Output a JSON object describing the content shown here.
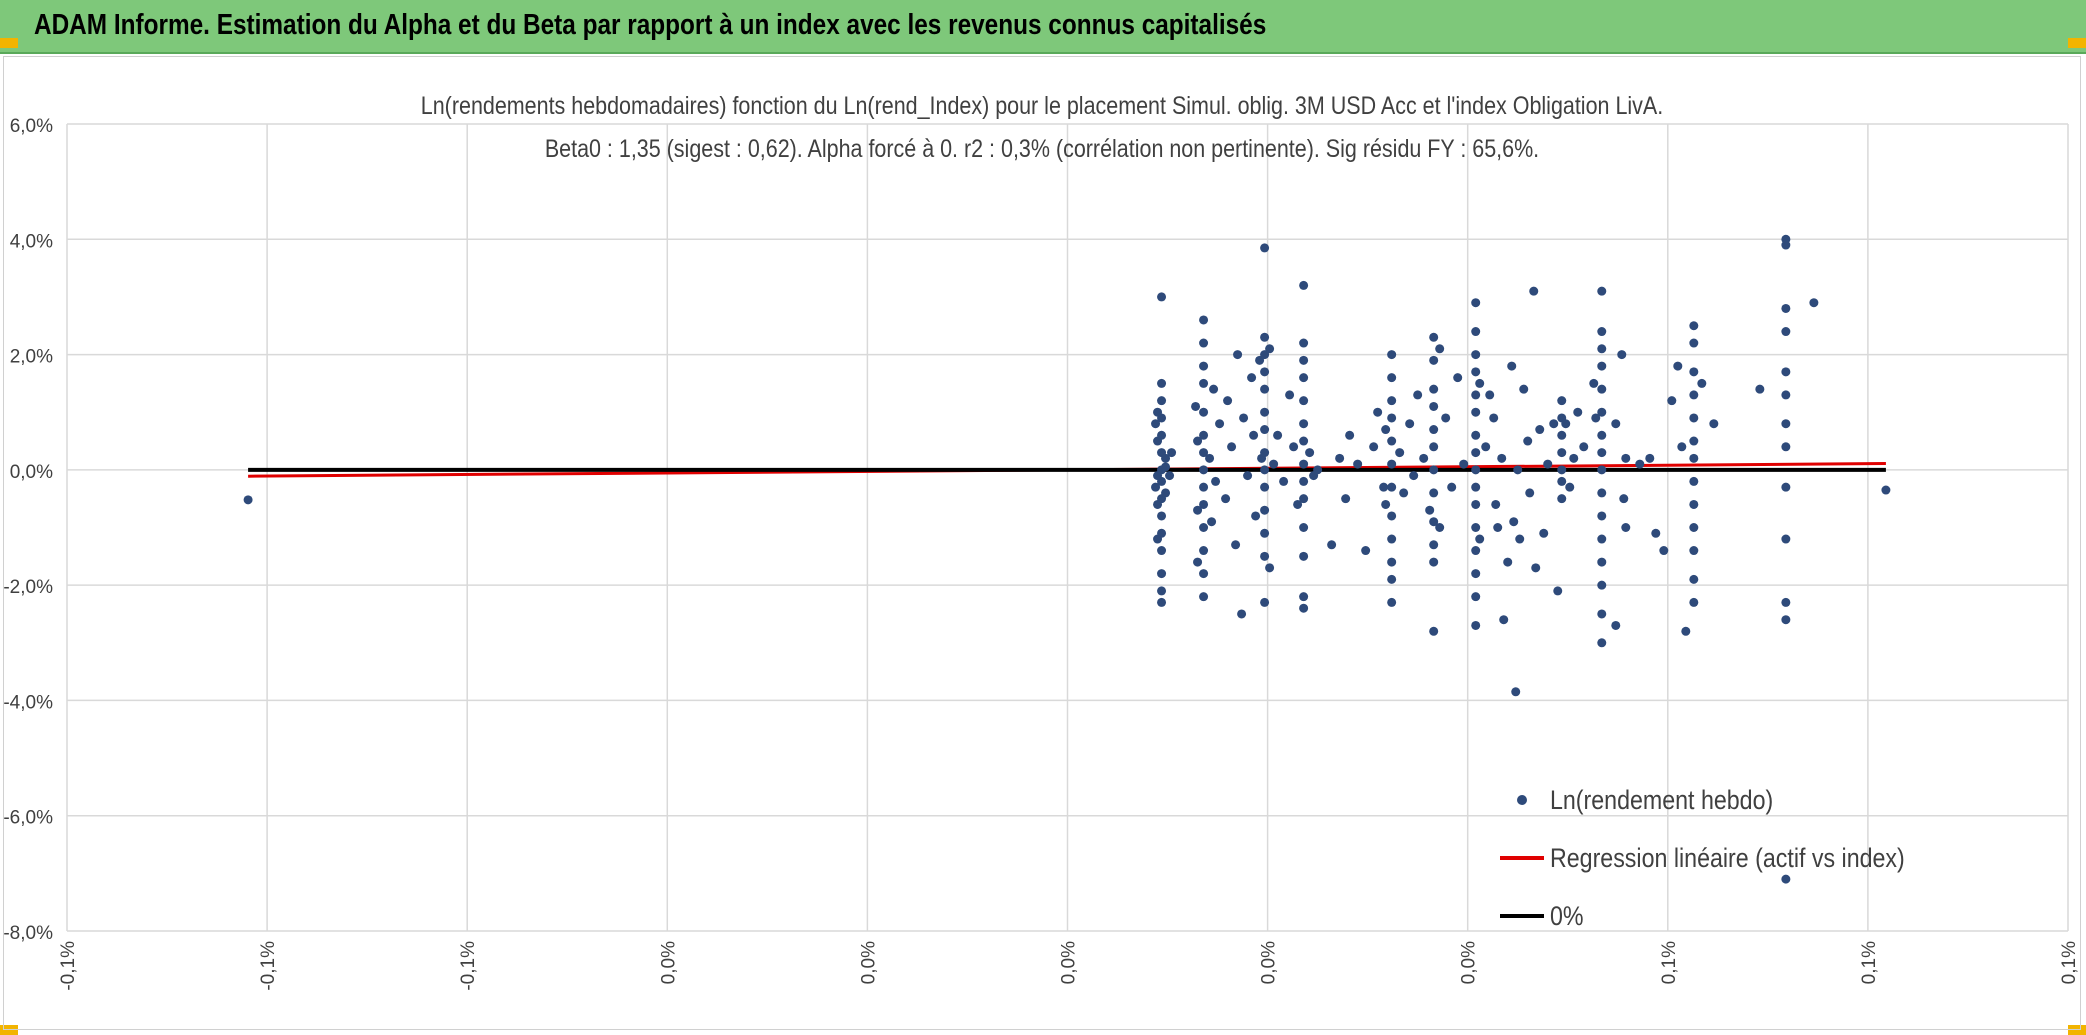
{
  "header": {
    "title": "ADAM Informe. Estimation du Alpha et du Beta par rapport à un index avec les revenus connus capitalisés"
  },
  "colors": {
    "banner": "#7ec87a",
    "points": "#2e4a7a",
    "regression": "#e00000",
    "zero_line": "#000000",
    "grid": "#d9d9d9"
  },
  "chart_data": {
    "type": "scatter",
    "title": "Ln(rendements hebdomadaires) fonction du Ln(rend_Index) pour le placement Simul. oblig. 3M USD Acc et l'index Obligation LivA.",
    "subtitle": "Beta0 : 1,35 (sigest : 0,62). Alpha forcé à 0. r2 : 0,3% (corrélation non pertinente). Sig résidu FY : 65,6%.",
    "xlabel": "",
    "ylabel": "",
    "xlim": [
      -0.1,
      0.1
    ],
    "ylim": [
      -8,
      6
    ],
    "x_ticks": [
      -0.1,
      -0.08,
      -0.06,
      -0.04,
      -0.02,
      0.0,
      0.02,
      0.04,
      0.06,
      0.08,
      0.1
    ],
    "x_tick_labels": [
      "-0,1%",
      "-0,1%",
      "-0,1%",
      "0,0%",
      "0,0%",
      "0,0%",
      "0,0%",
      "0,0%",
      "0,1%",
      "0,1%",
      "0,1%"
    ],
    "y_ticks": [
      -8,
      -6,
      -4,
      -2,
      0,
      2,
      4,
      6
    ],
    "y_tick_labels": [
      "-8,0%",
      "-6,0%",
      "-4,0%",
      "-2,0%",
      "0,0%",
      "2,0%",
      "4,0%",
      "6,0%"
    ],
    "grid": true,
    "legend_position": "bottom-right",
    "series": [
      {
        "name": "Ln(rendement hebdo)",
        "kind": "scatter",
        "color": "#2e4a7a",
        "points": [
          [
            -0.0819,
            -0.52
          ],
          [
            0.0094,
            3.0
          ],
          [
            0.0094,
            1.5
          ],
          [
            0.0094,
            1.2
          ],
          [
            0.0094,
            0.9
          ],
          [
            0.0094,
            0.6
          ],
          [
            0.0094,
            0.3
          ],
          [
            0.0094,
            0.0
          ],
          [
            0.0094,
            -0.2
          ],
          [
            0.0094,
            -0.5
          ],
          [
            0.0094,
            -0.8
          ],
          [
            0.0094,
            -1.1
          ],
          [
            0.0094,
            -1.4
          ],
          [
            0.0094,
            -1.8
          ],
          [
            0.0094,
            -2.1
          ],
          [
            0.0094,
            -2.3
          ],
          [
            0.009,
            1.0
          ],
          [
            0.009,
            0.5
          ],
          [
            0.009,
            -0.1
          ],
          [
            0.009,
            -0.6
          ],
          [
            0.009,
            -1.2
          ],
          [
            0.0088,
            0.8
          ],
          [
            0.0088,
            -0.3
          ],
          [
            0.0098,
            0.2
          ],
          [
            0.0098,
            -0.4
          ],
          [
            0.0098,
            0.05
          ],
          [
            0.0102,
            -0.1
          ],
          [
            0.0104,
            0.3
          ],
          [
            0.0136,
            2.6
          ],
          [
            0.0136,
            2.2
          ],
          [
            0.0136,
            1.8
          ],
          [
            0.0136,
            1.5
          ],
          [
            0.0136,
            1.0
          ],
          [
            0.0136,
            0.6
          ],
          [
            0.0136,
            0.3
          ],
          [
            0.0136,
            0.0
          ],
          [
            0.0136,
            -0.3
          ],
          [
            0.0136,
            -0.6
          ],
          [
            0.0136,
            -1.0
          ],
          [
            0.0136,
            -1.4
          ],
          [
            0.0136,
            -1.8
          ],
          [
            0.0136,
            -2.2
          ],
          [
            0.013,
            0.5
          ],
          [
            0.013,
            -0.7
          ],
          [
            0.013,
            -1.6
          ],
          [
            0.0128,
            1.1
          ],
          [
            0.0142,
            0.2
          ],
          [
            0.0144,
            -0.9
          ],
          [
            0.0146,
            1.4
          ],
          [
            0.0148,
            -0.2
          ],
          [
            0.0152,
            0.8
          ],
          [
            0.0158,
            -0.5
          ],
          [
            0.016,
            1.2
          ],
          [
            0.0164,
            0.4
          ],
          [
            0.0168,
            -1.3
          ],
          [
            0.017,
            2.0
          ],
          [
            0.0174,
            -2.5
          ],
          [
            0.0176,
            0.9
          ],
          [
            0.018,
            -0.1
          ],
          [
            0.0184,
            1.6
          ],
          [
            0.0186,
            0.6
          ],
          [
            0.0188,
            -0.8
          ],
          [
            0.0192,
            1.9
          ],
          [
            0.0194,
            0.2
          ],
          [
            0.0197,
            3.85
          ],
          [
            0.0197,
            2.3
          ],
          [
            0.0197,
            2.0
          ],
          [
            0.0197,
            1.7
          ],
          [
            0.0197,
            1.4
          ],
          [
            0.0197,
            1.0
          ],
          [
            0.0197,
            0.7
          ],
          [
            0.0197,
            0.3
          ],
          [
            0.0197,
            0.0
          ],
          [
            0.0197,
            -0.3
          ],
          [
            0.0197,
            -0.7
          ],
          [
            0.0197,
            -1.1
          ],
          [
            0.0197,
            -1.5
          ],
          [
            0.0197,
            -2.3
          ],
          [
            0.0202,
            2.1
          ],
          [
            0.0202,
            -1.7
          ],
          [
            0.0206,
            0.1
          ],
          [
            0.021,
            0.6
          ],
          [
            0.0216,
            -0.2
          ],
          [
            0.0222,
            1.3
          ],
          [
            0.0226,
            0.4
          ],
          [
            0.023,
            -0.6
          ],
          [
            0.0236,
            3.2
          ],
          [
            0.0236,
            2.2
          ],
          [
            0.0236,
            1.9
          ],
          [
            0.0236,
            1.6
          ],
          [
            0.0236,
            1.2
          ],
          [
            0.0236,
            0.8
          ],
          [
            0.0236,
            0.5
          ],
          [
            0.0236,
            0.1
          ],
          [
            0.0236,
            -0.2
          ],
          [
            0.0236,
            -0.5
          ],
          [
            0.0236,
            -1.0
          ],
          [
            0.0236,
            -1.5
          ],
          [
            0.0236,
            -2.2
          ],
          [
            0.0236,
            -2.4
          ],
          [
            0.0242,
            0.3
          ],
          [
            0.0246,
            -0.1
          ],
          [
            0.025,
            0.0
          ],
          [
            0.0264,
            -1.3
          ],
          [
            0.0272,
            0.2
          ],
          [
            0.0278,
            -0.5
          ],
          [
            0.0282,
            0.6
          ],
          [
            0.029,
            0.1
          ],
          [
            0.0298,
            -1.4
          ],
          [
            0.0306,
            0.4
          ],
          [
            0.031,
            1.0
          ],
          [
            0.0316,
            -0.3
          ],
          [
            0.0324,
            2.0
          ],
          [
            0.0324,
            1.6
          ],
          [
            0.0324,
            1.2
          ],
          [
            0.0324,
            0.9
          ],
          [
            0.0324,
            0.5
          ],
          [
            0.0324,
            0.1
          ],
          [
            0.0324,
            -0.3
          ],
          [
            0.0324,
            -0.8
          ],
          [
            0.0324,
            -1.2
          ],
          [
            0.0324,
            -1.6
          ],
          [
            0.0324,
            -1.9
          ],
          [
            0.0324,
            -2.3
          ],
          [
            0.0318,
            0.7
          ],
          [
            0.0318,
            -0.6
          ],
          [
            0.0332,
            0.3
          ],
          [
            0.0336,
            -0.4
          ],
          [
            0.0342,
            0.8
          ],
          [
            0.0346,
            -0.1
          ],
          [
            0.035,
            1.3
          ],
          [
            0.0356,
            0.2
          ],
          [
            0.0362,
            -0.7
          ],
          [
            0.0366,
            2.3
          ],
          [
            0.0366,
            1.9
          ],
          [
            0.0366,
            1.4
          ],
          [
            0.0366,
            1.1
          ],
          [
            0.0366,
            0.7
          ],
          [
            0.0366,
            0.4
          ],
          [
            0.0366,
            0.0
          ],
          [
            0.0366,
            -0.4
          ],
          [
            0.0366,
            -0.9
          ],
          [
            0.0366,
            -1.3
          ],
          [
            0.0366,
            -1.6
          ],
          [
            0.0366,
            -2.8
          ],
          [
            0.0372,
            2.1
          ],
          [
            0.0372,
            -1.0
          ],
          [
            0.0378,
            0.9
          ],
          [
            0.0384,
            -0.3
          ],
          [
            0.039,
            1.6
          ],
          [
            0.0396,
            0.1
          ],
          [
            0.0408,
            2.9
          ],
          [
            0.0408,
            2.4
          ],
          [
            0.0408,
            2.0
          ],
          [
            0.0408,
            1.7
          ],
          [
            0.0408,
            1.3
          ],
          [
            0.0408,
            1.0
          ],
          [
            0.0408,
            0.6
          ],
          [
            0.0408,
            0.3
          ],
          [
            0.0408,
            0.0
          ],
          [
            0.0408,
            -0.3
          ],
          [
            0.0408,
            -0.6
          ],
          [
            0.0408,
            -1.0
          ],
          [
            0.0408,
            -1.4
          ],
          [
            0.0408,
            -1.8
          ],
          [
            0.0408,
            -2.2
          ],
          [
            0.0408,
            -2.7
          ],
          [
            0.0412,
            1.5
          ],
          [
            0.0412,
            -1.2
          ],
          [
            0.0418,
            0.4
          ],
          [
            0.0422,
            1.3
          ],
          [
            0.0426,
            0.9
          ],
          [
            0.0428,
            -0.6
          ],
          [
            0.043,
            -1.0
          ],
          [
            0.0434,
            0.2
          ],
          [
            0.0436,
            -2.6
          ],
          [
            0.044,
            -1.6
          ],
          [
            0.0444,
            1.8
          ],
          [
            0.0446,
            -0.9
          ],
          [
            0.0448,
            -3.85
          ],
          [
            0.045,
            0.0
          ],
          [
            0.0452,
            -1.2
          ],
          [
            0.0456,
            1.4
          ],
          [
            0.046,
            0.5
          ],
          [
            0.0462,
            -0.4
          ],
          [
            0.0466,
            3.1
          ],
          [
            0.0468,
            -1.7
          ],
          [
            0.0472,
            0.7
          ],
          [
            0.0476,
            -1.1
          ],
          [
            0.048,
            0.1
          ],
          [
            0.0486,
            0.8
          ],
          [
            0.049,
            -2.1
          ],
          [
            0.0494,
            1.2
          ],
          [
            0.0494,
            0.9
          ],
          [
            0.0494,
            0.6
          ],
          [
            0.0494,
            0.3
          ],
          [
            0.0494,
            0.0
          ],
          [
            0.0494,
            -0.2
          ],
          [
            0.0494,
            -0.5
          ],
          [
            0.0498,
            0.8
          ],
          [
            0.0502,
            -0.3
          ],
          [
            0.0506,
            0.2
          ],
          [
            0.051,
            1.0
          ],
          [
            0.0516,
            0.4
          ],
          [
            0.0526,
            1.5
          ],
          [
            0.0528,
            0.9
          ],
          [
            0.0534,
            3.1
          ],
          [
            0.0534,
            2.4
          ],
          [
            0.0534,
            2.1
          ],
          [
            0.0534,
            1.8
          ],
          [
            0.0534,
            1.4
          ],
          [
            0.0534,
            1.0
          ],
          [
            0.0534,
            0.6
          ],
          [
            0.0534,
            0.3
          ],
          [
            0.0534,
            0.0
          ],
          [
            0.0534,
            -0.4
          ],
          [
            0.0534,
            -0.8
          ],
          [
            0.0534,
            -1.2
          ],
          [
            0.0534,
            -1.6
          ],
          [
            0.0534,
            -2.0
          ],
          [
            0.0534,
            -2.5
          ],
          [
            0.0534,
            -3.0
          ],
          [
            0.0548,
            0.8
          ],
          [
            0.0548,
            -2.7
          ],
          [
            0.0554,
            2.0
          ],
          [
            0.0556,
            -0.5
          ],
          [
            0.0558,
            0.2
          ],
          [
            0.0558,
            -1.0
          ],
          [
            0.0572,
            0.1
          ],
          [
            0.0582,
            0.2
          ],
          [
            0.0588,
            -1.1
          ],
          [
            0.0596,
            -1.4
          ],
          [
            0.0604,
            1.2
          ],
          [
            0.061,
            1.8
          ],
          [
            0.0614,
            0.4
          ],
          [
            0.0618,
            -2.8
          ],
          [
            0.0626,
            2.5
          ],
          [
            0.0626,
            2.2
          ],
          [
            0.0626,
            1.7
          ],
          [
            0.0626,
            1.3
          ],
          [
            0.0626,
            0.9
          ],
          [
            0.0626,
            0.5
          ],
          [
            0.0626,
            0.2
          ],
          [
            0.0626,
            -0.2
          ],
          [
            0.0626,
            -0.6
          ],
          [
            0.0626,
            -1.0
          ],
          [
            0.0626,
            -1.4
          ],
          [
            0.0626,
            -1.9
          ],
          [
            0.0626,
            -2.3
          ],
          [
            0.0634,
            1.5
          ],
          [
            0.0646,
            0.8
          ],
          [
            0.0692,
            1.4
          ],
          [
            0.0718,
            3.9
          ],
          [
            0.0718,
            4.0
          ],
          [
            0.0718,
            2.8
          ],
          [
            0.0718,
            2.4
          ],
          [
            0.0718,
            1.7
          ],
          [
            0.0718,
            1.3
          ],
          [
            0.0718,
            0.8
          ],
          [
            0.0718,
            0.4
          ],
          [
            0.0718,
            -0.3
          ],
          [
            0.0718,
            -1.2
          ],
          [
            0.0718,
            -2.3
          ],
          [
            0.0718,
            -2.6
          ],
          [
            0.0718,
            -7.1
          ],
          [
            0.0746,
            2.9
          ],
          [
            0.0818,
            -0.35
          ]
        ]
      },
      {
        "name": "Regression linéaire (actif vs index)",
        "kind": "line",
        "color": "#e00000",
        "points": [
          [
            -0.0819,
            -0.11
          ],
          [
            0.0818,
            0.11
          ]
        ]
      },
      {
        "name": "0%",
        "kind": "line",
        "color": "#000000",
        "points": [
          [
            -0.0819,
            0.0
          ],
          [
            0.0818,
            0.0
          ]
        ]
      }
    ]
  }
}
